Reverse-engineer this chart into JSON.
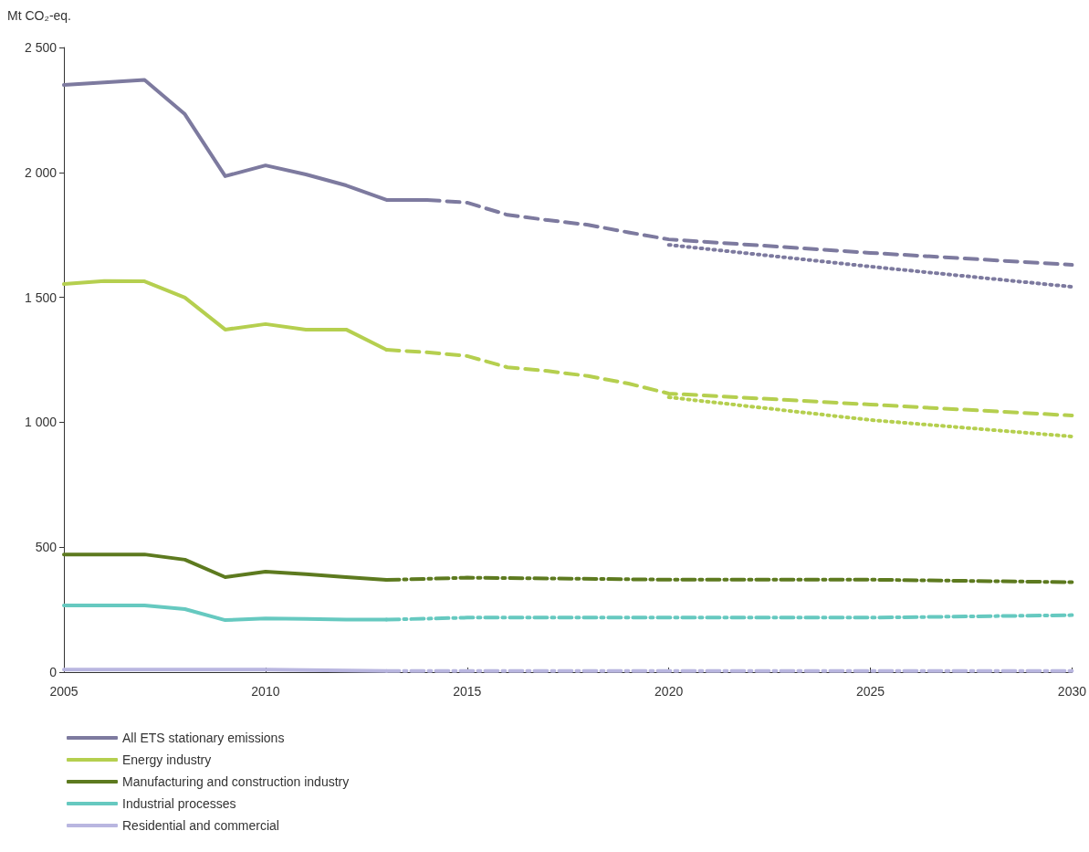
{
  "chart_data": {
    "type": "line",
    "ylabel": "Mt CO₂-eq.",
    "xlim": [
      2005,
      2030
    ],
    "xticks": [
      2005,
      2010,
      2015,
      2020,
      2025,
      2030
    ],
    "ylim": [
      0,
      2500
    ],
    "yticks": [
      0,
      500,
      {
        "value": 1000,
        "label": "1 000"
      },
      {
        "value": 1500,
        "label": "1 500"
      },
      {
        "value": 2000,
        "label": "2 000"
      },
      {
        "value": 2500,
        "label": "2 500"
      }
    ],
    "grid": false,
    "legend": "bottom",
    "marker": "none",
    "series": [
      {
        "name": "All ETS stationary emissions",
        "color": "#7d7a9f",
        "line_style": "solid",
        "x": [
          2005,
          2006,
          2007,
          2008,
          2009,
          2010,
          2011,
          2012,
          2013,
          2014
        ],
        "values": [
          2350,
          2360,
          2370,
          2233,
          1985,
          2028,
          1992,
          1948,
          1890,
          1890
        ]
      },
      {
        "color": "#7d7a9f",
        "line_style": "dashed",
        "x": [
          2014,
          2015,
          2016,
          2017,
          2018,
          2019,
          2020,
          2025,
          2030
        ],
        "values": [
          1890,
          1879,
          1830,
          1809,
          1790,
          1760,
          1732,
          1678,
          1630
        ]
      },
      {
        "color": "#7d7a9f",
        "line_style": "dotted",
        "x": [
          2020,
          2025,
          2030
        ],
        "values": [
          1710,
          1623,
          1542
        ]
      },
      {
        "name": "Energy industry",
        "color": "#b5cf4f",
        "line_style": "solid",
        "x": [
          2005,
          2006,
          2007,
          2008,
          2009,
          2010,
          2011,
          2012,
          2013
        ],
        "values": [
          1553,
          1565,
          1564,
          1499,
          1371,
          1393,
          1371,
          1371,
          1290
        ]
      },
      {
        "color": "#b5cf4f",
        "line_style": "dashed",
        "x": [
          2013,
          2014,
          2015,
          2016,
          2017,
          2018,
          2019,
          2020,
          2025,
          2030
        ],
        "values": [
          1290,
          1280,
          1265,
          1220,
          1205,
          1185,
          1155,
          1115,
          1071,
          1027
        ]
      },
      {
        "color": "#b5cf4f",
        "line_style": "dotted",
        "x": [
          2020,
          2025,
          2030
        ],
        "values": [
          1100,
          1009,
          943
        ]
      },
      {
        "name": "Manufacturing and construction industry",
        "color": "#5d7a1f",
        "line_style": "solid",
        "x": [
          2005,
          2006,
          2007,
          2008,
          2009,
          2010,
          2011,
          2012,
          2013
        ],
        "values": [
          471,
          471,
          471,
          450,
          380,
          402,
          392,
          380,
          369
        ]
      },
      {
        "color": "#5d7a1f",
        "line_style": "dashdot",
        "x": [
          2013,
          2015,
          2020,
          2025,
          2030
        ],
        "values": [
          369,
          378,
          370,
          370,
          360
        ]
      },
      {
        "name": "Industrial processes",
        "color": "#66c9c0",
        "line_style": "solid",
        "x": [
          2005,
          2006,
          2007,
          2008,
          2009,
          2010,
          2011,
          2012,
          2013
        ],
        "values": [
          267,
          267,
          267,
          252,
          208,
          215,
          213,
          210,
          210
        ]
      },
      {
        "color": "#66c9c0",
        "line_style": "dashdot",
        "x": [
          2013,
          2015,
          2020,
          2025,
          2030
        ],
        "values": [
          210,
          218,
          218,
          218,
          228
        ]
      },
      {
        "name": "Residential and commercial",
        "color": "#b9b6e0",
        "line_style": "solid",
        "x": [
          2005,
          2010,
          2013
        ],
        "values": [
          10,
          10,
          5
        ]
      },
      {
        "color": "#b9b6e0",
        "line_style": "dashdot",
        "x": [
          2013,
          2020,
          2030
        ],
        "values": [
          5,
          5,
          5
        ]
      }
    ]
  }
}
